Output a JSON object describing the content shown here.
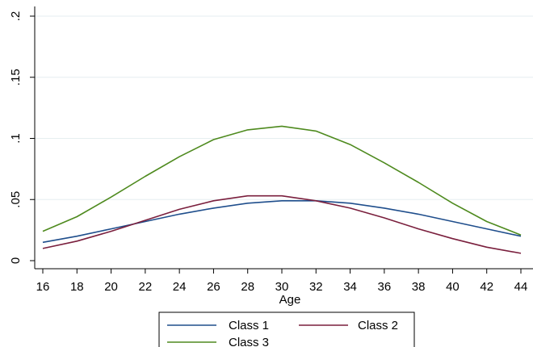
{
  "chart_data": {
    "type": "line",
    "xlabel": "Age",
    "ylabel": "",
    "x": [
      16,
      18,
      20,
      22,
      24,
      26,
      28,
      30,
      32,
      34,
      36,
      38,
      40,
      42,
      44
    ],
    "xlim": [
      16,
      44
    ],
    "ylim": [
      0,
      0.2
    ],
    "x_ticks": [
      16,
      18,
      20,
      22,
      24,
      26,
      28,
      30,
      32,
      34,
      36,
      38,
      40,
      42,
      44
    ],
    "x_tick_labels": [
      "16",
      "18",
      "20",
      "22",
      "24",
      "26",
      "28",
      "30",
      "32",
      "34",
      "36",
      "38",
      "40",
      "42",
      "44"
    ],
    "y_ticks": [
      0,
      0.05,
      0.1,
      0.15,
      0.2
    ],
    "y_tick_labels": [
      "0",
      ".05",
      ".1",
      ".15",
      ".2"
    ],
    "grid": "horizontal",
    "legend_position": "bottom",
    "series": [
      {
        "name": "Class 1",
        "color": "#1f4e8c",
        "values": [
          0.015,
          0.02,
          0.026,
          0.032,
          0.038,
          0.043,
          0.047,
          0.049,
          0.049,
          0.047,
          0.043,
          0.038,
          0.032,
          0.026,
          0.02
        ]
      },
      {
        "name": "Class 2",
        "color": "#7a1f3d",
        "values": [
          0.01,
          0.016,
          0.024,
          0.033,
          0.042,
          0.049,
          0.053,
          0.053,
          0.049,
          0.043,
          0.035,
          0.026,
          0.018,
          0.011,
          0.006
        ]
      },
      {
        "name": "Class 3",
        "color": "#4e8a1e",
        "values": [
          0.024,
          0.036,
          0.052,
          0.069,
          0.085,
          0.099,
          0.107,
          0.11,
          0.106,
          0.095,
          0.08,
          0.064,
          0.047,
          0.032,
          0.021
        ]
      }
    ]
  }
}
